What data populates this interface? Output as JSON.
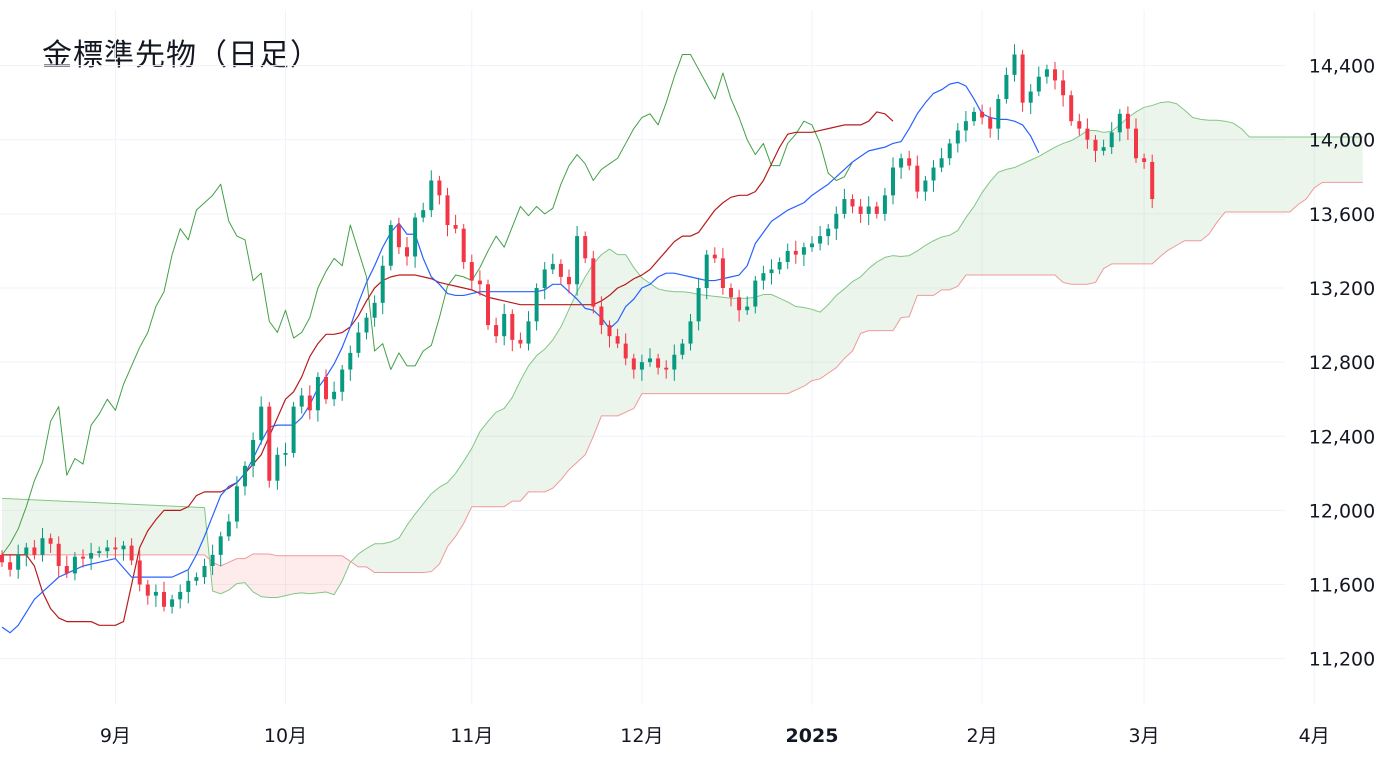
{
  "title": "金標準先物（日足）",
  "chart_data": {
    "type": "candlestick",
    "title": "金標準先物（日足）",
    "indicator": "ichimoku",
    "y_axis": {
      "position": "right",
      "range": [
        10950,
        14700
      ],
      "ticks": [
        11200,
        11600,
        12000,
        12400,
        12800,
        13200,
        13600,
        14000,
        14400
      ],
      "tick_labels": [
        "11,200",
        "11,600",
        "12,000",
        "12,400",
        "12,800",
        "13,200",
        "13,600",
        "14,000",
        "14,400"
      ]
    },
    "x_axis": {
      "total_slots": 175,
      "ticks": [
        {
          "label": "9月",
          "slot": 14,
          "bold": false
        },
        {
          "label": "10月",
          "slot": 35,
          "bold": false
        },
        {
          "label": "11月",
          "slot": 58,
          "bold": false
        },
        {
          "label": "12月",
          "slot": 79,
          "bold": false
        },
        {
          "label": "2025",
          "slot": 100,
          "bold": true
        },
        {
          "label": "2月",
          "slot": 121,
          "bold": false
        },
        {
          "label": "3月",
          "slot": 141,
          "bold": false
        },
        {
          "label": "4月",
          "slot": 162,
          "bold": false
        }
      ]
    },
    "colors": {
      "up": "#089981",
      "down": "#f23645",
      "tenkan": "#2962ff",
      "kijun": "#b71c1c",
      "chikou": "#43a047",
      "span_a": "#81c784",
      "span_b": "#ef9a9a",
      "cloud_bull": "rgba(67,160,71,0.10)",
      "cloud_bear": "rgba(242,54,69,0.10)",
      "grid": "#f0f3fa"
    },
    "closes": [
      11720,
      11680,
      11760,
      11800,
      11760,
      11850,
      11820,
      11700,
      11660,
      11750,
      11740,
      11770,
      11780,
      11800,
      11790,
      11810,
      11730,
      11600,
      11540,
      11560,
      11480,
      11520,
      11560,
      11620,
      11640,
      11700,
      11760,
      11860,
      11940,
      12130,
      12240,
      12380,
      12560,
      12160,
      12300,
      12310,
      12560,
      12620,
      12540,
      12720,
      12600,
      12640,
      12760,
      12850,
      12960,
      13040,
      13120,
      13320,
      13540,
      13420,
      13370,
      13580,
      13620,
      13780,
      13700,
      13540,
      13520,
      13340,
      13240,
      13220,
      13000,
      12940,
      13060,
      12920,
      12900,
      13020,
      13200,
      13300,
      13330,
      13260,
      13220,
      13480,
      13360,
      13100,
      13000,
      12940,
      12900,
      12820,
      12760,
      12800,
      12820,
      12770,
      12760,
      12840,
      12900,
      13020,
      13200,
      13380,
      13360,
      13200,
      13150,
      13080,
      13100,
      13240,
      13280,
      13300,
      13340,
      13400,
      13380,
      13420,
      13440,
      13480,
      13520,
      13600,
      13680,
      13640,
      13600,
      13640,
      13600,
      13700,
      13850,
      13900,
      13860,
      13720,
      13780,
      13850,
      13900,
      13980,
      14050,
      14100,
      14150,
      14120,
      14060,
      14220,
      14350,
      14460,
      14200,
      14260,
      14340,
      14380,
      14320,
      14240,
      14100,
      14060,
      14000,
      13940,
      13960,
      14040,
      14140,
      14060,
      13900,
      13880,
      13680
    ],
    "tenkan": [
      11370,
      11340,
      11380,
      11450,
      11520,
      11560,
      11600,
      11640,
      11660,
      11680,
      11700,
      11710,
      11720,
      11730,
      11740,
      11690,
      11640,
      11640,
      11640,
      11640,
      11640,
      11640,
      11660,
      11680,
      11760,
      11860,
      11970,
      12080,
      12130,
      12150,
      12200,
      12280,
      12370,
      12450,
      12460,
      12460,
      12460,
      12500,
      12570,
      12660,
      12720,
      12790,
      12880,
      12990,
      13120,
      13230,
      13320,
      13420,
      13500,
      13550,
      13490,
      13490,
      13360,
      13260,
      13220,
      13170,
      13160,
      13160,
      13170,
      13180,
      13180,
      13180,
      13180,
      13180,
      13180,
      13180,
      13180,
      13190,
      13220,
      13220,
      13180,
      13140,
      13090,
      13080,
      13040,
      12980,
      13020,
      13100,
      13140,
      13200,
      13220,
      13260,
      13280,
      13280,
      13270,
      13260,
      13250,
      13240,
      13240,
      13250,
      13260,
      13270,
      13320,
      13440,
      13500,
      13560,
      13590,
      13620,
      13640,
      13660,
      13700,
      13730,
      13760,
      13800,
      13840,
      13880,
      13910,
      13940,
      13950,
      13960,
      13980,
      13990,
      14060,
      14140,
      14200,
      14250,
      14270,
      14300,
      14310,
      14290,
      14220,
      14140,
      14120,
      14110,
      14110,
      14100,
      14080,
      14020,
      13930
    ],
    "kijun": [
      11760,
      11760,
      11760,
      11760,
      11700,
      11560,
      11470,
      11420,
      11400,
      11400,
      11400,
      11400,
      11380,
      11380,
      11380,
      11400,
      11600,
      11800,
      11890,
      11950,
      12000,
      12000,
      12000,
      12020,
      12080,
      12100,
      12100,
      12100,
      12120,
      12150,
      12200,
      12250,
      12300,
      12400,
      12500,
      12600,
      12640,
      12720,
      12830,
      12900,
      12950,
      12950,
      12960,
      12990,
      13050,
      13130,
      13200,
      13240,
      13260,
      13270,
      13270,
      13270,
      13260,
      13250,
      13230,
      13220,
      13210,
      13200,
      13190,
      13170,
      13150,
      13140,
      13130,
      13120,
      13110,
      13110,
      13110,
      13110,
      13110,
      13110,
      13110,
      13110,
      13110,
      13110,
      13130,
      13160,
      13200,
      13220,
      13250,
      13270,
      13300,
      13350,
      13400,
      13450,
      13480,
      13480,
      13500,
      13560,
      13620,
      13660,
      13690,
      13700,
      13700,
      13720,
      13780,
      13870,
      13960,
      14030,
      14040,
      14040,
      14040,
      14050,
      14060,
      14070,
      14080,
      14080,
      14080,
      14100,
      14150,
      14140,
      14100
    ],
    "chikou": [
      11760,
      11820,
      11900,
      12020,
      12160,
      12260,
      12480,
      12560,
      12190,
      12280,
      12250,
      12460,
      12520,
      12600,
      12540,
      12680,
      12780,
      12880,
      12960,
      13100,
      13180,
      13380,
      13520,
      13460,
      13620,
      13660,
      13700,
      13760,
      13560,
      13480,
      13460,
      13240,
      13280,
      13020,
      12960,
      13080,
      12930,
      12960,
      13040,
      13200,
      13290,
      13360,
      13320,
      13540,
      13400,
      13260,
      12860,
      12900,
      12760,
      12850,
      12780,
      12780,
      12860,
      12890,
      13040,
      13210,
      13270,
      13260,
      13240,
      13310,
      13400,
      13480,
      13420,
      13530,
      13640,
      13590,
      13640,
      13600,
      13630,
      13760,
      13860,
      13920,
      13870,
      13780,
      13840,
      13870,
      13900,
      13980,
      14060,
      14120,
      14140,
      14080,
      14200,
      14340,
      14460,
      14460,
      14380,
      14300,
      14220,
      14360,
      14220,
      14120,
      14000,
      13920,
      13980,
      13860,
      13860,
      13980,
      14030,
      14100,
      14080,
      13980,
      13820,
      13780,
      13800,
      13880
    ]
  }
}
